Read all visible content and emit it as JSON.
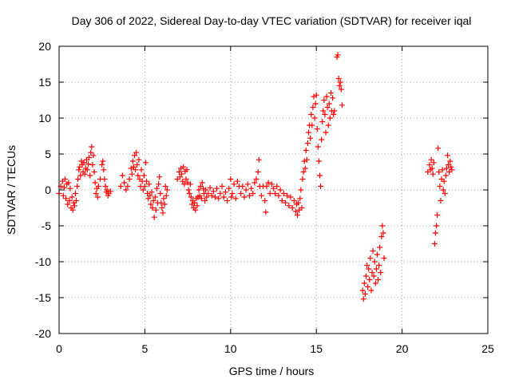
{
  "chart_data": {
    "type": "scatter",
    "title": "Day 306 of 2022, Sidereal Day-to-day VTEC variation (SDTVAR) for receiver iqal",
    "xlabel": "GPS time / hours",
    "ylabel": "SDTVAR / TECUs",
    "xlim": [
      0,
      25
    ],
    "ylim": [
      -20,
      20
    ],
    "xticks": [
      0,
      5,
      10,
      15,
      20,
      25
    ],
    "yticks": [
      -20,
      -15,
      -10,
      -5,
      0,
      5,
      10,
      15,
      20
    ],
    "xtick_labels": [
      "0",
      "5",
      "10",
      "15",
      "20",
      "25"
    ],
    "ytick_labels": [
      "-20",
      "-15",
      "-10",
      "-5",
      "0",
      "5",
      "10",
      "15",
      "20"
    ],
    "grid": true,
    "marker": "plus",
    "color": "#ff0000",
    "series": [
      {
        "name": "SDTVAR",
        "points": [
          [
            0.0,
            -0.5
          ],
          [
            0.1,
            0.5
          ],
          [
            0.2,
            1.2
          ],
          [
            0.25,
            -0.8
          ],
          [
            0.3,
            0.3
          ],
          [
            0.35,
            1.5
          ],
          [
            0.4,
            -1.2
          ],
          [
            0.45,
            0.8
          ],
          [
            0.5,
            -2.0
          ],
          [
            0.55,
            1.0
          ],
          [
            0.6,
            -1.5
          ],
          [
            0.65,
            0.2
          ],
          [
            0.7,
            -2.5
          ],
          [
            0.75,
            -1.0
          ],
          [
            0.8,
            -2.8
          ],
          [
            0.85,
            -1.8
          ],
          [
            0.9,
            -2.2
          ],
          [
            0.95,
            -0.5
          ],
          [
            1.0,
            -1.5
          ],
          [
            1.05,
            0.5
          ],
          [
            1.1,
            1.5
          ],
          [
            1.15,
            2.8
          ],
          [
            1.2,
            3.2
          ],
          [
            1.25,
            2.0
          ],
          [
            1.3,
            4.0
          ],
          [
            1.35,
            3.5
          ],
          [
            1.4,
            2.5
          ],
          [
            1.45,
            3.8
          ],
          [
            1.5,
            2.2
          ],
          [
            1.55,
            3.0
          ],
          [
            1.6,
            4.2
          ],
          [
            1.65,
            2.8
          ],
          [
            1.7,
            3.6
          ],
          [
            1.75,
            4.5
          ],
          [
            1.8,
            2.0
          ],
          [
            1.85,
            5.2
          ],
          [
            1.9,
            6.0
          ],
          [
            1.95,
            3.5
          ],
          [
            2.0,
            4.8
          ],
          [
            2.05,
            2.5
          ],
          [
            2.1,
            1.0
          ],
          [
            2.15,
            -0.5
          ],
          [
            2.2,
            0.2
          ],
          [
            2.25,
            -1.0
          ],
          [
            2.3,
            0.5
          ],
          [
            2.4,
            1.5
          ],
          [
            2.5,
            3.5
          ],
          [
            2.55,
            4.0
          ],
          [
            2.6,
            2.8
          ],
          [
            2.65,
            1.5
          ],
          [
            2.7,
            0.5
          ],
          [
            2.75,
            -0.3
          ],
          [
            2.8,
            0.0
          ],
          [
            2.85,
            -0.8
          ],
          [
            2.9,
            -0.5
          ],
          [
            3.0,
            -0.2
          ],
          [
            3.6,
            0.5
          ],
          [
            3.7,
            2.0
          ],
          [
            3.8,
            1.0
          ],
          [
            3.9,
            0.0
          ],
          [
            4.0,
            0.5
          ],
          [
            4.1,
            1.5
          ],
          [
            4.2,
            3.0
          ],
          [
            4.25,
            2.2
          ],
          [
            4.3,
            4.0
          ],
          [
            4.35,
            3.2
          ],
          [
            4.4,
            4.8
          ],
          [
            4.45,
            2.8
          ],
          [
            4.5,
            5.2
          ],
          [
            4.55,
            3.5
          ],
          [
            4.6,
            2.0
          ],
          [
            4.65,
            4.2
          ],
          [
            4.7,
            1.5
          ],
          [
            4.75,
            0.5
          ],
          [
            4.8,
            2.8
          ],
          [
            4.85,
            1.2
          ],
          [
            4.9,
            0.0
          ],
          [
            4.95,
            2.0
          ],
          [
            5.0,
            0.5
          ],
          [
            5.05,
            3.8
          ],
          [
            5.1,
            1.2
          ],
          [
            5.15,
            -0.5
          ],
          [
            5.2,
            -1.2
          ],
          [
            5.25,
            0.8
          ],
          [
            5.3,
            -0.8
          ],
          [
            5.35,
            -2.0
          ],
          [
            5.4,
            -0.3
          ],
          [
            5.45,
            -2.5
          ],
          [
            5.5,
            -1.5
          ],
          [
            5.55,
            -3.8
          ],
          [
            5.6,
            -1.0
          ],
          [
            5.65,
            -2.8
          ],
          [
            5.7,
            0.2
          ],
          [
            5.75,
            -1.8
          ],
          [
            5.8,
            0.8
          ],
          [
            5.85,
            1.8
          ],
          [
            5.9,
            -0.5
          ],
          [
            5.95,
            -1.8
          ],
          [
            6.0,
            -2.5
          ],
          [
            6.05,
            -3.2
          ],
          [
            6.1,
            -1.2
          ],
          [
            6.15,
            -2.0
          ],
          [
            6.2,
            0.5
          ],
          [
            6.25,
            -0.8
          ],
          [
            6.3,
            0.0
          ],
          [
            6.9,
            1.5
          ],
          [
            7.0,
            2.5
          ],
          [
            7.05,
            1.8
          ],
          [
            7.1,
            3.0
          ],
          [
            7.15,
            2.2
          ],
          [
            7.2,
            1.2
          ],
          [
            7.25,
            3.2
          ],
          [
            7.3,
            0.8
          ],
          [
            7.35,
            2.6
          ],
          [
            7.4,
            1.5
          ],
          [
            7.45,
            2.8
          ],
          [
            7.5,
            1.0
          ],
          [
            7.55,
            0.0
          ],
          [
            7.6,
            -0.5
          ],
          [
            7.65,
            0.8
          ],
          [
            7.7,
            -1.0
          ],
          [
            7.75,
            -2.0
          ],
          [
            7.8,
            -1.5
          ],
          [
            7.85,
            -2.5
          ],
          [
            7.9,
            -1.8
          ],
          [
            7.95,
            -2.8
          ],
          [
            8.0,
            -1.2
          ],
          [
            8.05,
            -2.2
          ],
          [
            8.1,
            -1.0
          ],
          [
            8.15,
            0.0
          ],
          [
            8.2,
            -0.8
          ],
          [
            8.25,
            0.5
          ],
          [
            8.3,
            -1.2
          ],
          [
            8.35,
            1.0
          ],
          [
            8.4,
            0.2
          ],
          [
            8.45,
            -0.5
          ],
          [
            8.5,
            -1.5
          ],
          [
            8.55,
            0.0
          ],
          [
            8.6,
            -1.0
          ],
          [
            8.7,
            -0.5
          ],
          [
            8.8,
            0.3
          ],
          [
            8.9,
            -0.8
          ],
          [
            9.0,
            -0.2
          ],
          [
            9.1,
            -1.0
          ],
          [
            9.2,
            0.2
          ],
          [
            9.3,
            -1.2
          ],
          [
            9.4,
            -0.5
          ],
          [
            9.5,
            0.5
          ],
          [
            9.6,
            -1.0
          ],
          [
            9.7,
            -0.3
          ],
          [
            9.8,
            -1.5
          ],
          [
            9.9,
            0.2
          ],
          [
            10.0,
            1.5
          ],
          [
            10.05,
            -1.0
          ],
          [
            10.1,
            -0.5
          ],
          [
            10.2,
            0.8
          ],
          [
            10.3,
            -1.2
          ],
          [
            10.4,
            1.2
          ],
          [
            10.5,
            0.5
          ],
          [
            10.6,
            -0.5
          ],
          [
            10.7,
            0.5
          ],
          [
            10.8,
            -1.0
          ],
          [
            10.9,
            0.0
          ],
          [
            11.0,
            0.8
          ],
          [
            11.1,
            -0.8
          ],
          [
            11.2,
            0.2
          ],
          [
            11.3,
            -0.5
          ],
          [
            11.4,
            1.0
          ],
          [
            11.5,
            1.5
          ],
          [
            11.6,
            2.5
          ],
          [
            11.65,
            4.2
          ],
          [
            11.7,
            0.5
          ],
          [
            11.8,
            -0.8
          ],
          [
            11.9,
            0.5
          ],
          [
            12.0,
            -1.5
          ],
          [
            12.05,
            -3.1
          ],
          [
            12.1,
            0.5
          ],
          [
            12.2,
            1.0
          ],
          [
            12.3,
            -0.5
          ],
          [
            12.4,
            0.8
          ],
          [
            12.5,
            0.2
          ],
          [
            12.6,
            -0.5
          ],
          [
            12.7,
            0.5
          ],
          [
            12.8,
            -0.8
          ],
          [
            12.9,
            0.0
          ],
          [
            13.0,
            -1.5
          ],
          [
            13.1,
            -0.5
          ],
          [
            13.2,
            -1.8
          ],
          [
            13.3,
            -0.8
          ],
          [
            13.4,
            -2.2
          ],
          [
            13.5,
            -1.0
          ],
          [
            13.6,
            -2.5
          ],
          [
            13.7,
            -1.5
          ],
          [
            13.8,
            -3.0
          ],
          [
            13.85,
            -2.0
          ],
          [
            13.9,
            -3.5
          ],
          [
            13.95,
            -1.8
          ],
          [
            14.0,
            -2.8
          ],
          [
            14.05,
            -1.2
          ],
          [
            14.1,
            0.0
          ],
          [
            14.15,
            -2.5
          ],
          [
            14.2,
            1.5
          ],
          [
            14.25,
            2.5
          ],
          [
            14.3,
            4.0
          ],
          [
            14.35,
            3.0
          ],
          [
            14.4,
            5.5
          ],
          [
            14.45,
            4.2
          ],
          [
            14.5,
            6.5
          ],
          [
            14.55,
            8.0
          ],
          [
            14.6,
            9.0
          ],
          [
            14.65,
            7.2
          ],
          [
            14.7,
            10.5
          ],
          [
            14.75,
            9.0
          ],
          [
            14.8,
            11.5
          ],
          [
            14.85,
            13.0
          ],
          [
            14.9,
            10.0
          ],
          [
            14.95,
            12.0
          ],
          [
            15.0,
            13.2
          ],
          [
            15.05,
            8.5
          ],
          [
            15.1,
            6.0
          ],
          [
            15.15,
            4.0
          ],
          [
            15.2,
            2.0
          ],
          [
            15.25,
            0.5
          ],
          [
            15.3,
            7.0
          ],
          [
            15.35,
            9.5
          ],
          [
            15.4,
            11.0
          ],
          [
            15.45,
            12.5
          ],
          [
            15.5,
            10.5
          ],
          [
            15.55,
            8.0
          ],
          [
            15.6,
            13.0
          ],
          [
            15.65,
            11.5
          ],
          [
            15.7,
            9.0
          ],
          [
            15.75,
            12.0
          ],
          [
            15.8,
            10.0
          ],
          [
            15.85,
            13.5
          ],
          [
            15.9,
            11.0
          ],
          [
            15.95,
            12.8
          ],
          [
            16.0,
            10.5
          ],
          [
            16.05,
            11.0
          ],
          [
            16.2,
            18.5
          ],
          [
            16.25,
            18.8
          ],
          [
            16.3,
            15.5
          ],
          [
            16.35,
            14.5
          ],
          [
            16.4,
            15.0
          ],
          [
            16.45,
            14.0
          ],
          [
            16.5,
            11.8
          ],
          [
            17.7,
            -14.0
          ],
          [
            17.75,
            -15.2
          ],
          [
            17.8,
            -13.0
          ],
          [
            17.85,
            -14.5
          ],
          [
            17.9,
            -12.0
          ],
          [
            17.95,
            -10.5
          ],
          [
            18.0,
            -13.5
          ],
          [
            18.05,
            -11.0
          ],
          [
            18.1,
            -12.5
          ],
          [
            18.15,
            -9.5
          ],
          [
            18.2,
            -14.0
          ],
          [
            18.25,
            -11.5
          ],
          [
            18.3,
            -8.5
          ],
          [
            18.35,
            -12.0
          ],
          [
            18.4,
            -10.0
          ],
          [
            18.45,
            -13.0
          ],
          [
            18.5,
            -11.0
          ],
          [
            18.55,
            -9.0
          ],
          [
            18.6,
            -12.5
          ],
          [
            18.65,
            -10.5
          ],
          [
            18.7,
            -8.0
          ],
          [
            18.75,
            -11.5
          ],
          [
            18.8,
            -6.5
          ],
          [
            18.85,
            -5.0
          ],
          [
            18.9,
            -6.0
          ],
          [
            18.95,
            -9.5
          ],
          [
            21.5,
            2.5
          ],
          [
            21.6,
            3.5
          ],
          [
            21.65,
            2.8
          ],
          [
            21.7,
            4.2
          ],
          [
            21.75,
            3.0
          ],
          [
            21.8,
            2.2
          ],
          [
            21.85,
            3.8
          ],
          [
            21.9,
            -7.5
          ],
          [
            21.95,
            -6.0
          ],
          [
            22.0,
            -5.0
          ],
          [
            22.05,
            -3.5
          ],
          [
            22.1,
            5.8
          ],
          [
            22.15,
            2.5
          ],
          [
            22.2,
            0.5
          ],
          [
            22.25,
            -1.5
          ],
          [
            22.3,
            1.5
          ],
          [
            22.35,
            2.8
          ],
          [
            22.4,
            0.0
          ],
          [
            22.45,
            1.2
          ],
          [
            22.5,
            -0.5
          ],
          [
            22.55,
            2.0
          ],
          [
            22.6,
            3.0
          ],
          [
            22.65,
            4.8
          ],
          [
            22.7,
            3.5
          ],
          [
            22.75,
            2.5
          ],
          [
            22.8,
            4.0
          ],
          [
            22.85,
            3.2
          ],
          [
            22.9,
            2.8
          ]
        ]
      }
    ]
  }
}
